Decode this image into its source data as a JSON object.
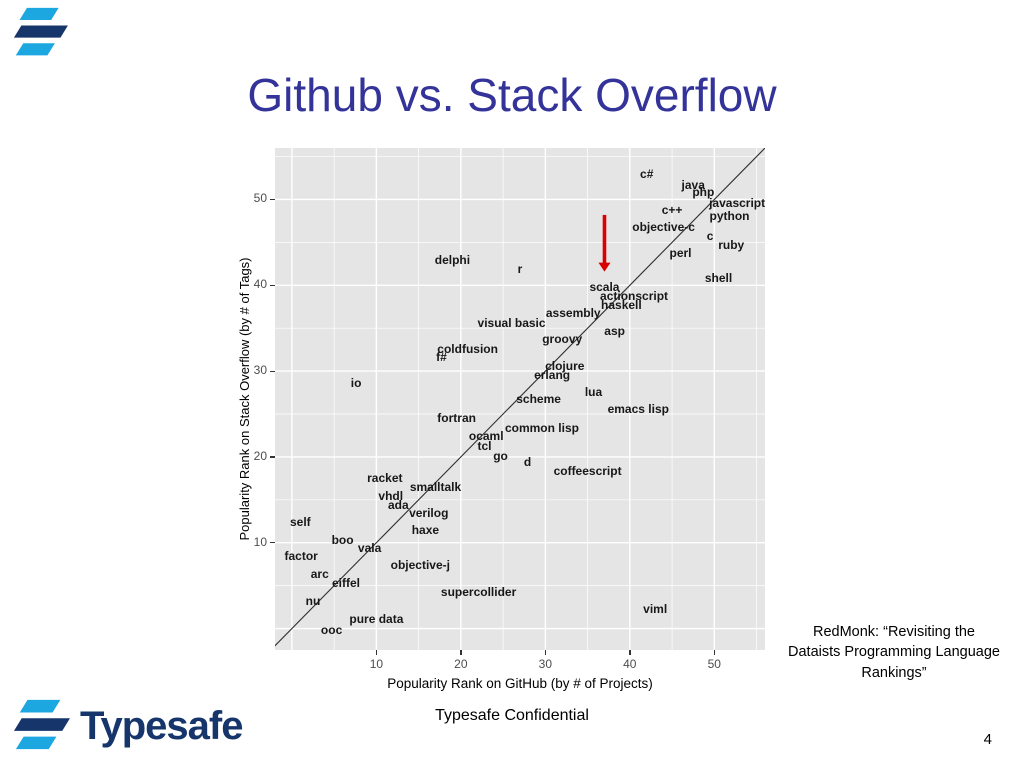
{
  "slide": {
    "title": "Github vs. Stack Overflow",
    "title_color": "#333399",
    "footer": "Typesafe Confidential",
    "page_number": "4",
    "attribution": "RedMonk: “Revisiting the Dataists Programming Language Rankings”",
    "logo_text": "Typesafe",
    "logo_colors": {
      "light": "#1CA7E0",
      "dark": "#15356B"
    }
  },
  "chart_data": {
    "type": "scatter",
    "title": "",
    "xlabel": "Popularity Rank on GitHub (by # of Projects)",
    "ylabel": "Popularity Rank on Stack Overflow (by # of Tags)",
    "xlim": [
      -2,
      56
    ],
    "ylim": [
      -2.5,
      56
    ],
    "xticks": [
      10,
      20,
      30,
      40,
      50
    ],
    "yticks": [
      10,
      20,
      30,
      40,
      50
    ],
    "grid": {
      "major": [
        0,
        10,
        20,
        30,
        40,
        50
      ],
      "minor": [
        5,
        15,
        25,
        35,
        45,
        55
      ]
    },
    "panel_color": "#E5E5E5",
    "diagonal_line": {
      "from": -2.5,
      "to": 56.5
    },
    "arrow": {
      "x": 37,
      "y_from": 48.2,
      "y_to": 41.6,
      "color": "#D90000",
      "points_at": "scala"
    },
    "points": [
      {
        "label": "c#",
        "x": 42,
        "y": 53
      },
      {
        "label": "java",
        "x": 47.5,
        "y": 51.7
      },
      {
        "label": "php",
        "x": 48.7,
        "y": 50.9
      },
      {
        "label": "javascript",
        "x": 52.7,
        "y": 49.6
      },
      {
        "label": "c++",
        "x": 45,
        "y": 48.8
      },
      {
        "label": "python",
        "x": 51.8,
        "y": 48.1
      },
      {
        "label": "objective-c",
        "x": 44,
        "y": 46.8
      },
      {
        "label": "c",
        "x": 49.5,
        "y": 45.7
      },
      {
        "label": "ruby",
        "x": 52,
        "y": 44.7
      },
      {
        "label": "perl",
        "x": 46,
        "y": 43.8
      },
      {
        "label": "shell",
        "x": 50.5,
        "y": 40.9
      },
      {
        "label": "delphi",
        "x": 19,
        "y": 43
      },
      {
        "label": "r",
        "x": 27,
        "y": 41.9
      },
      {
        "label": "scala",
        "x": 37,
        "y": 39.8
      },
      {
        "label": "actionscript",
        "x": 40.5,
        "y": 38.8
      },
      {
        "label": "haskell",
        "x": 39,
        "y": 37.7
      },
      {
        "label": "assembly",
        "x": 33.3,
        "y": 36.8
      },
      {
        "label": "visual basic",
        "x": 26,
        "y": 35.6
      },
      {
        "label": "asp",
        "x": 38.2,
        "y": 34.7
      },
      {
        "label": "groovy",
        "x": 32,
        "y": 33.7
      },
      {
        "label": "coldfusion",
        "x": 20.8,
        "y": 32.6
      },
      {
        "label": "f#",
        "x": 17.7,
        "y": 31.7
      },
      {
        "label": "clojure",
        "x": 32.3,
        "y": 30.6
      },
      {
        "label": "erlang",
        "x": 30.8,
        "y": 29.6
      },
      {
        "label": "io",
        "x": 7.6,
        "y": 28.6
      },
      {
        "label": "lua",
        "x": 35.7,
        "y": 27.6
      },
      {
        "label": "scheme",
        "x": 29.2,
        "y": 26.7
      },
      {
        "label": "emacs lisp",
        "x": 41,
        "y": 25.6
      },
      {
        "label": "fortran",
        "x": 19.5,
        "y": 24.5
      },
      {
        "label": "common lisp",
        "x": 29.6,
        "y": 23.4
      },
      {
        "label": "ocaml",
        "x": 23,
        "y": 22.4
      },
      {
        "label": "tcl",
        "x": 22.8,
        "y": 21.3
      },
      {
        "label": "go",
        "x": 24.7,
        "y": 20.1
      },
      {
        "label": "d",
        "x": 27.9,
        "y": 19.4
      },
      {
        "label": "coffeescript",
        "x": 35,
        "y": 18.4
      },
      {
        "label": "racket",
        "x": 11,
        "y": 17.5
      },
      {
        "label": "smalltalk",
        "x": 17,
        "y": 16.5
      },
      {
        "label": "vhdl",
        "x": 11.7,
        "y": 15.5
      },
      {
        "label": "ada",
        "x": 12.6,
        "y": 14.4
      },
      {
        "label": "verilog",
        "x": 16.2,
        "y": 13.5
      },
      {
        "label": "self",
        "x": 1,
        "y": 12.4
      },
      {
        "label": "haxe",
        "x": 15.8,
        "y": 11.5
      },
      {
        "label": "boo",
        "x": 6,
        "y": 10.3
      },
      {
        "label": "vala",
        "x": 9.2,
        "y": 9.4
      },
      {
        "label": "factor",
        "x": 1.1,
        "y": 8.4
      },
      {
        "label": "objective-j",
        "x": 15.2,
        "y": 7.4
      },
      {
        "label": "arc",
        "x": 3.3,
        "y": 6.4
      },
      {
        "label": "eiffel",
        "x": 6.4,
        "y": 5.3
      },
      {
        "label": "supercollider",
        "x": 22.1,
        "y": 4.3
      },
      {
        "label": "nu",
        "x": 2.5,
        "y": 3.2
      },
      {
        "label": "viml",
        "x": 43,
        "y": 2.3
      },
      {
        "label": "pure data",
        "x": 10,
        "y": 1.1
      },
      {
        "label": "ooc",
        "x": 4.7,
        "y": -0.2
      }
    ]
  }
}
